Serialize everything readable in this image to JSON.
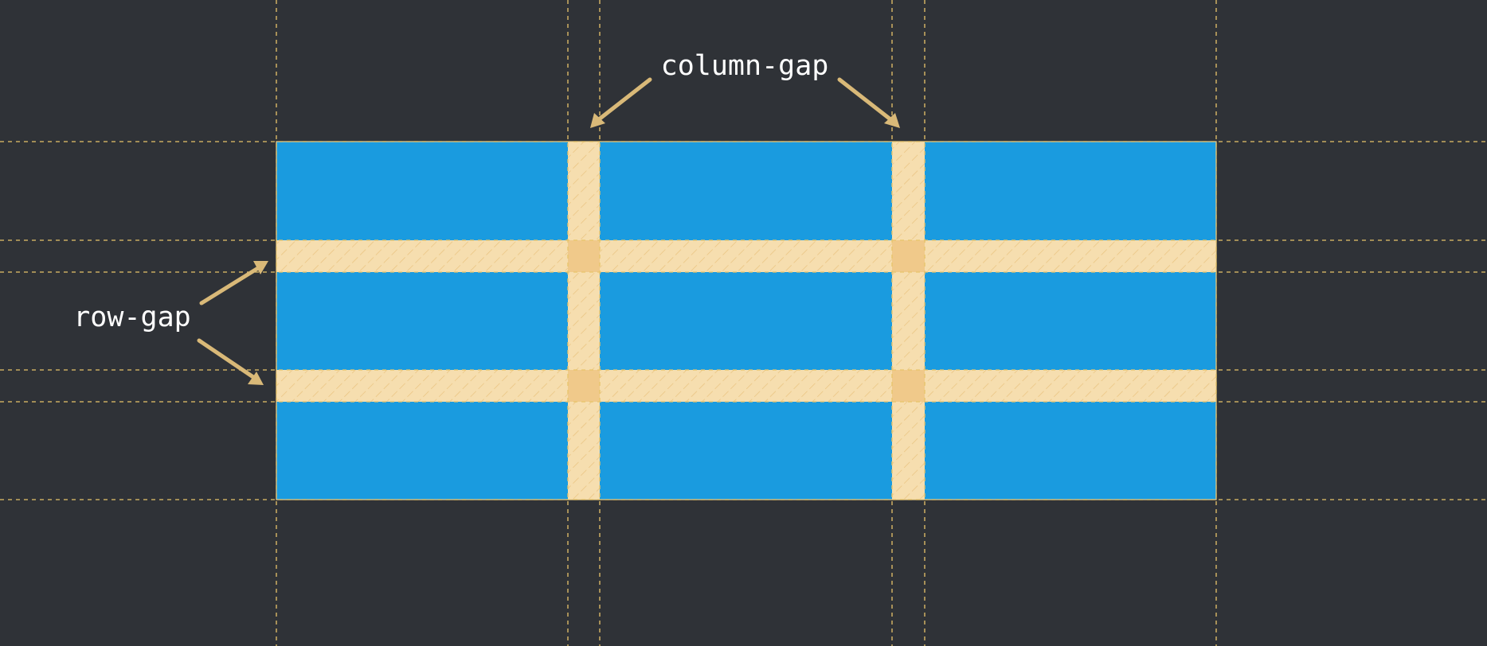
{
  "labels": {
    "column_gap": "column-gap",
    "row_gap": "row-gap"
  },
  "grid": {
    "columns": 3,
    "rows": 3
  },
  "colors": {
    "background": "#2f3237",
    "cell": "#1a9bdf",
    "gap": "#f6deaf",
    "guide": "#e8c46a",
    "arrow": "#d9b978",
    "label": "#ffffff"
  }
}
